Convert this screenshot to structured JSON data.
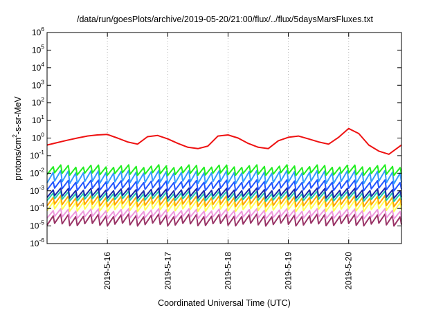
{
  "chart_data": {
    "type": "line",
    "title": "/data/run/goesPlots/archive/2019-05-20/21:00/flux/../flux/5daysMarsFluxes.txt",
    "xlabel": "Coordinated Universal Time (UTC)",
    "ylabel": "protons/cm2-s-sr-MeV",
    "y_scale": "log",
    "ylim": [
      1e-06,
      1000000.0
    ],
    "y_ticks": [
      {
        "base": "10",
        "exp": "-6"
      },
      {
        "base": "10",
        "exp": "-5"
      },
      {
        "base": "10",
        "exp": "-4"
      },
      {
        "base": "10",
        "exp": "-3"
      },
      {
        "base": "10",
        "exp": "-2"
      },
      {
        "base": "10",
        "exp": "-1"
      },
      {
        "base": "10",
        "exp": "0"
      },
      {
        "base": "10",
        "exp": "1"
      },
      {
        "base": "10",
        "exp": "2"
      },
      {
        "base": "10",
        "exp": "3"
      },
      {
        "base": "10",
        "exp": "4"
      },
      {
        "base": "10",
        "exp": "5"
      },
      {
        "base": "10",
        "exp": "6"
      }
    ],
    "xlim": [
      "2019-05-15T00:00",
      "2019-05-20T21:00"
    ],
    "x_ticks": [
      "2019-5-16",
      "2019-5-17",
      "2019-5-18",
      "2019-5-19",
      "2019-5-20"
    ],
    "grid": true,
    "legend": "none",
    "series": [
      {
        "color": "#ee1111",
        "x": [
          "2019-05-15T00:00",
          "2019-05-15T04:00",
          "2019-05-15T08:00",
          "2019-05-15T12:00",
          "2019-05-15T16:00",
          "2019-05-15T20:00",
          "2019-05-16T00:00",
          "2019-05-16T04:00",
          "2019-05-16T08:00",
          "2019-05-16T12:00",
          "2019-05-16T16:00",
          "2019-05-16T20:00",
          "2019-05-17T00:00",
          "2019-05-17T04:00",
          "2019-05-17T08:00",
          "2019-05-17T12:00",
          "2019-05-17T16:00",
          "2019-05-17T20:00",
          "2019-05-18T00:00",
          "2019-05-18T04:00",
          "2019-05-18T08:00",
          "2019-05-18T12:00",
          "2019-05-18T16:00",
          "2019-05-18T20:00",
          "2019-05-19T00:00",
          "2019-05-19T04:00",
          "2019-05-19T08:00",
          "2019-05-19T12:00",
          "2019-05-19T16:00",
          "2019-05-19T20:00",
          "2019-05-20T00:00",
          "2019-05-20T04:00",
          "2019-05-20T08:00",
          "2019-05-20T12:00",
          "2019-05-20T16:00",
          "2019-05-20T21:00"
        ],
        "y": [
          0.4,
          0.55,
          0.75,
          1.0,
          1.3,
          1.5,
          1.6,
          1.0,
          0.6,
          0.45,
          1.2,
          1.4,
          0.9,
          0.5,
          0.3,
          0.25,
          0.35,
          1.3,
          1.5,
          1.0,
          0.5,
          0.3,
          0.25,
          0.7,
          1.1,
          1.3,
          0.9,
          0.6,
          0.45,
          1.1,
          3.5,
          1.8,
          0.4,
          0.18,
          0.12,
          0.4
        ]
      },
      {
        "color": "#22ee22",
        "y_range": [
          0.009,
          0.025
        ]
      },
      {
        "color": "#3399ff",
        "y_range": [
          0.003,
          0.012
        ]
      },
      {
        "color": "#2255ff",
        "y_range": [
          0.0012,
          0.0035
        ]
      },
      {
        "color": "#1a2aa8",
        "y_range": [
          0.00045,
          0.0012
        ]
      },
      {
        "color": "#22ccaa",
        "y_range": [
          0.0003,
          0.0008
        ]
      },
      {
        "color": "#ffa500",
        "y_range": [
          0.00015,
          0.00045
        ]
      },
      {
        "color": "#ffff55",
        "y_range": [
          8e-05,
          0.00025
        ]
      },
      {
        "color": "#ee99dd",
        "y_range": [
          3e-05,
          8e-05
        ]
      },
      {
        "color": "#993366",
        "y_range": [
          1.2e-05,
          4e-05
        ]
      }
    ]
  }
}
